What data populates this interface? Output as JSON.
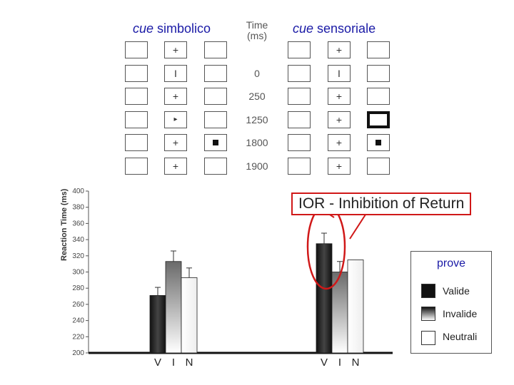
{
  "headings": {
    "symbolic_italic": "cue",
    "symbolic_rest": " simbolico",
    "time_line1": "Time",
    "time_line2": "(ms)",
    "sensory_italic": "cue",
    "sensory_rest": " sensoriale"
  },
  "timeline": [
    {
      "time": "",
      "left": {
        "center": "+",
        "cue_box": "",
        "target_right": false
      },
      "right": {
        "center": "+",
        "cue_box": "",
        "target_right": false
      }
    },
    {
      "time": "0",
      "left": {
        "center": "I"
      },
      "right": {
        "center": "I"
      }
    },
    {
      "time": "250",
      "left": {
        "center": "+"
      },
      "right": {
        "center": "+"
      }
    },
    {
      "time": "1250",
      "left": {
        "center": "▸"
      },
      "right": {
        "center": "+",
        "thick_right_box": true
      }
    },
    {
      "time": "1800",
      "left": {
        "center": "+",
        "target_right": true
      },
      "right": {
        "center": "+",
        "target_right": true
      }
    },
    {
      "time": "1900",
      "left": {
        "center": "+"
      },
      "right": {
        "center": "+"
      }
    }
  ],
  "callout": "IOR - Inhibition of Return",
  "legend": {
    "title": "prove",
    "items": [
      {
        "label": "Valide",
        "color": "#111111"
      },
      {
        "label": "Invalide",
        "color": "gradient"
      },
      {
        "label": "Neutrali",
        "color": "#ffffff"
      }
    ]
  },
  "chart_data": {
    "type": "bar",
    "title": "",
    "xlabel": "",
    "ylabel": "Reaction Time (ms)",
    "ylim": [
      200,
      400
    ],
    "yticks": [
      200,
      220,
      240,
      260,
      280,
      300,
      320,
      340,
      360,
      380,
      400
    ],
    "groups": [
      {
        "name": "cue simbolico",
        "categories": [
          "V",
          "I",
          "N"
        ],
        "values": [
          271,
          313,
          293
        ],
        "errors": [
          10,
          13,
          12
        ]
      },
      {
        "name": "cue sensoriale",
        "categories": [
          "V",
          "I",
          "N"
        ],
        "values": [
          335,
          300,
          315
        ],
        "errors": [
          13,
          13,
          0
        ]
      }
    ],
    "series": [
      "Valide",
      "Invalide",
      "Neutrali"
    ]
  }
}
